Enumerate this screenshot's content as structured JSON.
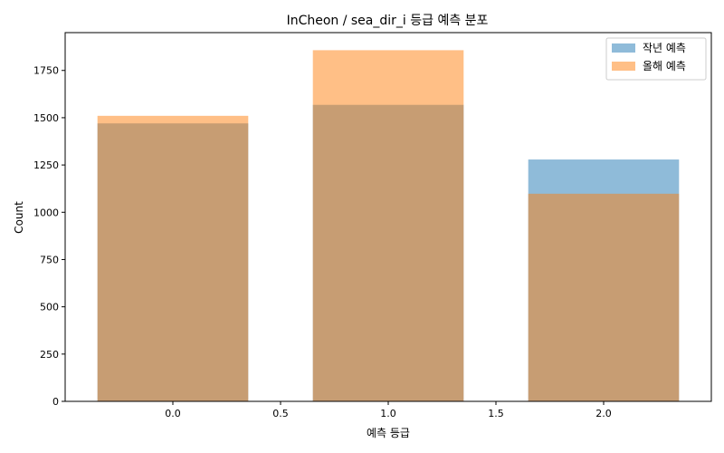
{
  "chart_data": {
    "type": "bar",
    "title": "InCheon / sea_dir_i 등급 예측 분포",
    "xlabel": "예측 등급",
    "ylabel": "Count",
    "xlim": [
      -0.5,
      2.5
    ],
    "ylim": [
      0,
      1950
    ],
    "xticks": [
      0.0,
      0.5,
      1.0,
      1.5,
      2.0
    ],
    "xtick_labels": [
      "0.0",
      "0.5",
      "1.0",
      "1.5",
      "2.0"
    ],
    "yticks": [
      0,
      250,
      500,
      750,
      1000,
      1250,
      1500,
      1750
    ],
    "ytick_labels": [
      "0",
      "250",
      "500",
      "750",
      "1000",
      "1250",
      "1500",
      "1750"
    ],
    "bar_width": 0.7,
    "categories": [
      0,
      1,
      2
    ],
    "series": [
      {
        "name": "작년 예측",
        "color": "#1f77b4",
        "opacity": 0.5,
        "values": [
          1470,
          1568,
          1279
        ]
      },
      {
        "name": "올해 예측",
        "color": "#ff7f0e",
        "opacity": 0.5,
        "values": [
          1510,
          1857,
          1098
        ]
      }
    ],
    "legend_position": "top-right",
    "grid": false
  }
}
